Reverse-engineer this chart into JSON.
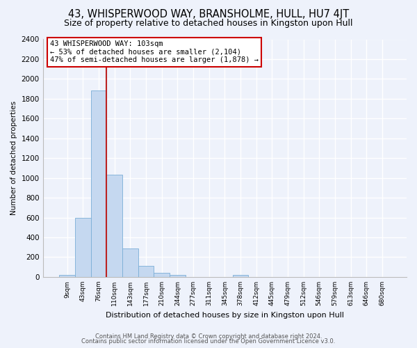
{
  "title": "43, WHISPERWOOD WAY, BRANSHOLME, HULL, HU7 4JT",
  "subtitle": "Size of property relative to detached houses in Kingston upon Hull",
  "xlabel": "Distribution of detached houses by size in Kingston upon Hull",
  "ylabel": "Number of detached properties",
  "bin_labels": [
    "9sqm",
    "43sqm",
    "76sqm",
    "110sqm",
    "143sqm",
    "177sqm",
    "210sqm",
    "244sqm",
    "277sqm",
    "311sqm",
    "345sqm",
    "378sqm",
    "412sqm",
    "445sqm",
    "479sqm",
    "512sqm",
    "546sqm",
    "579sqm",
    "613sqm",
    "646sqm",
    "680sqm"
  ],
  "bar_heights": [
    20,
    600,
    1880,
    1030,
    285,
    110,
    45,
    20,
    0,
    0,
    0,
    20,
    0,
    0,
    0,
    0,
    0,
    0,
    0,
    0,
    0
  ],
  "bar_color": "#c5d8f0",
  "bar_edge_color": "#7aaed6",
  "vline_color": "#bb2222",
  "ylim": [
    0,
    2400
  ],
  "yticks": [
    0,
    200,
    400,
    600,
    800,
    1000,
    1200,
    1400,
    1600,
    1800,
    2000,
    2200,
    2400
  ],
  "annotation_title": "43 WHISPERWOOD WAY: 103sqm",
  "annotation_line1": "← 53% of detached houses are smaller (2,104)",
  "annotation_line2": "47% of semi-detached houses are larger (1,878) →",
  "annotation_box_color": "#ffffff",
  "annotation_box_edge": "#cc0000",
  "footer1": "Contains HM Land Registry data © Crown copyright and database right 2024.",
  "footer2": "Contains public sector information licensed under the Open Government Licence v3.0.",
  "bg_color": "#eef2fb",
  "plot_bg_color": "#eef2fb",
  "grid_color": "#ffffff",
  "title_fontsize": 10.5,
  "subtitle_fontsize": 9
}
